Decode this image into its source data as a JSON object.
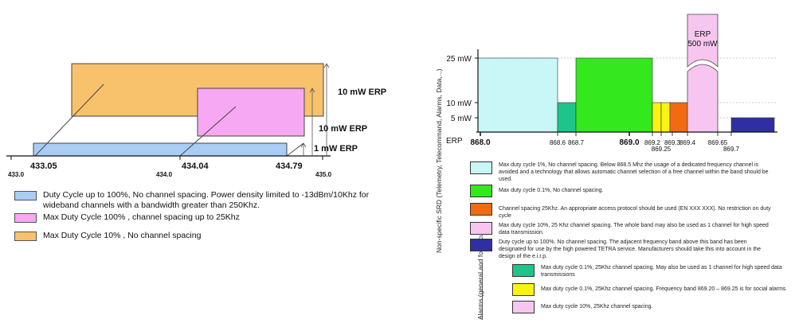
{
  "left_chart": {
    "type": "bar",
    "title": "",
    "x_tick_labels": [
      "433.0",
      "435.0"
    ],
    "x_range": [
      433.0,
      435.0
    ],
    "bands": [
      {
        "name": "Duty Cycle up to 100%, No channel spacing. Power density limited to -13dBm/10Khz for wideband channels with a bandwidth greater than 250Khz.",
        "start": 433.05,
        "end": 434.79,
        "erp_mw": 1,
        "erp_label": "1 mW ERP",
        "color": "#a9cdf5"
      },
      {
        "name": "Max Duty Cycle 100% , channel spacing up to 25Khz",
        "start": 434.04,
        "end": 434.79,
        "erp_mw": 10,
        "erp_label": "10 mW ERP",
        "color": "#f7a8f2"
      },
      {
        "name": "Max Duty Cycle 10% , No channel spacing",
        "start": 433.05,
        "end": 434.79,
        "erp_mw": 10,
        "erp_label": "10 mW ERP",
        "color": "#f7c26b"
      }
    ],
    "bound_labels": [
      "433.05",
      "434.04",
      "434.79"
    ],
    "center_label": "434.0"
  },
  "right_chart": {
    "type": "bar",
    "ylabel": "ERP",
    "y_tick_labels": [
      "25 mW",
      "10 mW",
      "5 mW"
    ],
    "x_tick_labels": [
      "868.0",
      "868.6",
      "868.7",
      "869.0",
      "869.2",
      "869.25",
      "869.3",
      "869.4",
      "869.65",
      "869.7"
    ],
    "x_tick_bold": [
      "868.0",
      "869.0"
    ],
    "bands": [
      {
        "start": 868.0,
        "end": 868.6,
        "erp_mw": 25,
        "color": "#c9f6f6",
        "desc": "Max duty cycle 1%, No channel spacing. Below 868.5 Mhz the usage of a dedicated frequency channel is avoided and a technology that allows automatic channel selection of a free channel within the band should be used."
      },
      {
        "start": 868.6,
        "end": 868.7,
        "erp_mw": 10,
        "color": "#1fc48a"
      },
      {
        "start": 868.7,
        "end": 869.2,
        "erp_mw": 25,
        "color": "#33e81c",
        "desc": "Max duty cycle 0.1%, No channel spacing."
      },
      {
        "start": 869.2,
        "end": 869.25,
        "erp_mw": 10,
        "color": "#f8f312"
      },
      {
        "start": 869.25,
        "end": 869.3,
        "erp_mw": 10,
        "color": "#f8f312"
      },
      {
        "start": 869.3,
        "end": 869.4,
        "erp_mw": 10,
        "color": "#f26a12",
        "desc": "Channel spacing 25Khz. An appropriate access protocol should be used (EN XXX XXX). No restriction on duty cycle"
      },
      {
        "start": 869.4,
        "end": 869.65,
        "erp_mw": 500,
        "color": "#f7c6f0",
        "desc": "Max duty cycle 10%, 25 Khz channel spacing. The whole band may also be used as 1 channel for high speed data transmission."
      },
      {
        "start": 869.7,
        "end": 870.0,
        "erp_mw": 5,
        "color": "#2f2fa3",
        "desc": "Duty cycle up to 100%. No channel spacing. The adjacent frequency band above this band has been designated for use by the high powered TETRA service. Manufacturers should take this into account in the design of the e.i.r.p."
      }
    ],
    "erp_callout": [
      "ERP",
      "500 mW"
    ],
    "group_labels": [
      "Non-specific SRD (Telemetry, Telecommand, Alarms, Data,...)",
      "Alarms (general and for security)"
    ],
    "alarm_legend": [
      {
        "color": "#1fc48a",
        "desc": "Max duty cycle 0.1%, 25Khz channel spacing. May also be used as 1 channel for high speed data transmissions"
      },
      {
        "color": "#f8f312",
        "desc": "Max duty cycle 0.1%, 25Khz channel spacing. Frequency band 869.20 – 869.25 is for social alarms"
      },
      {
        "color": "#f7c6f0",
        "desc": "Max duty cycle 10%, 25Khz channel spacing."
      }
    ]
  }
}
